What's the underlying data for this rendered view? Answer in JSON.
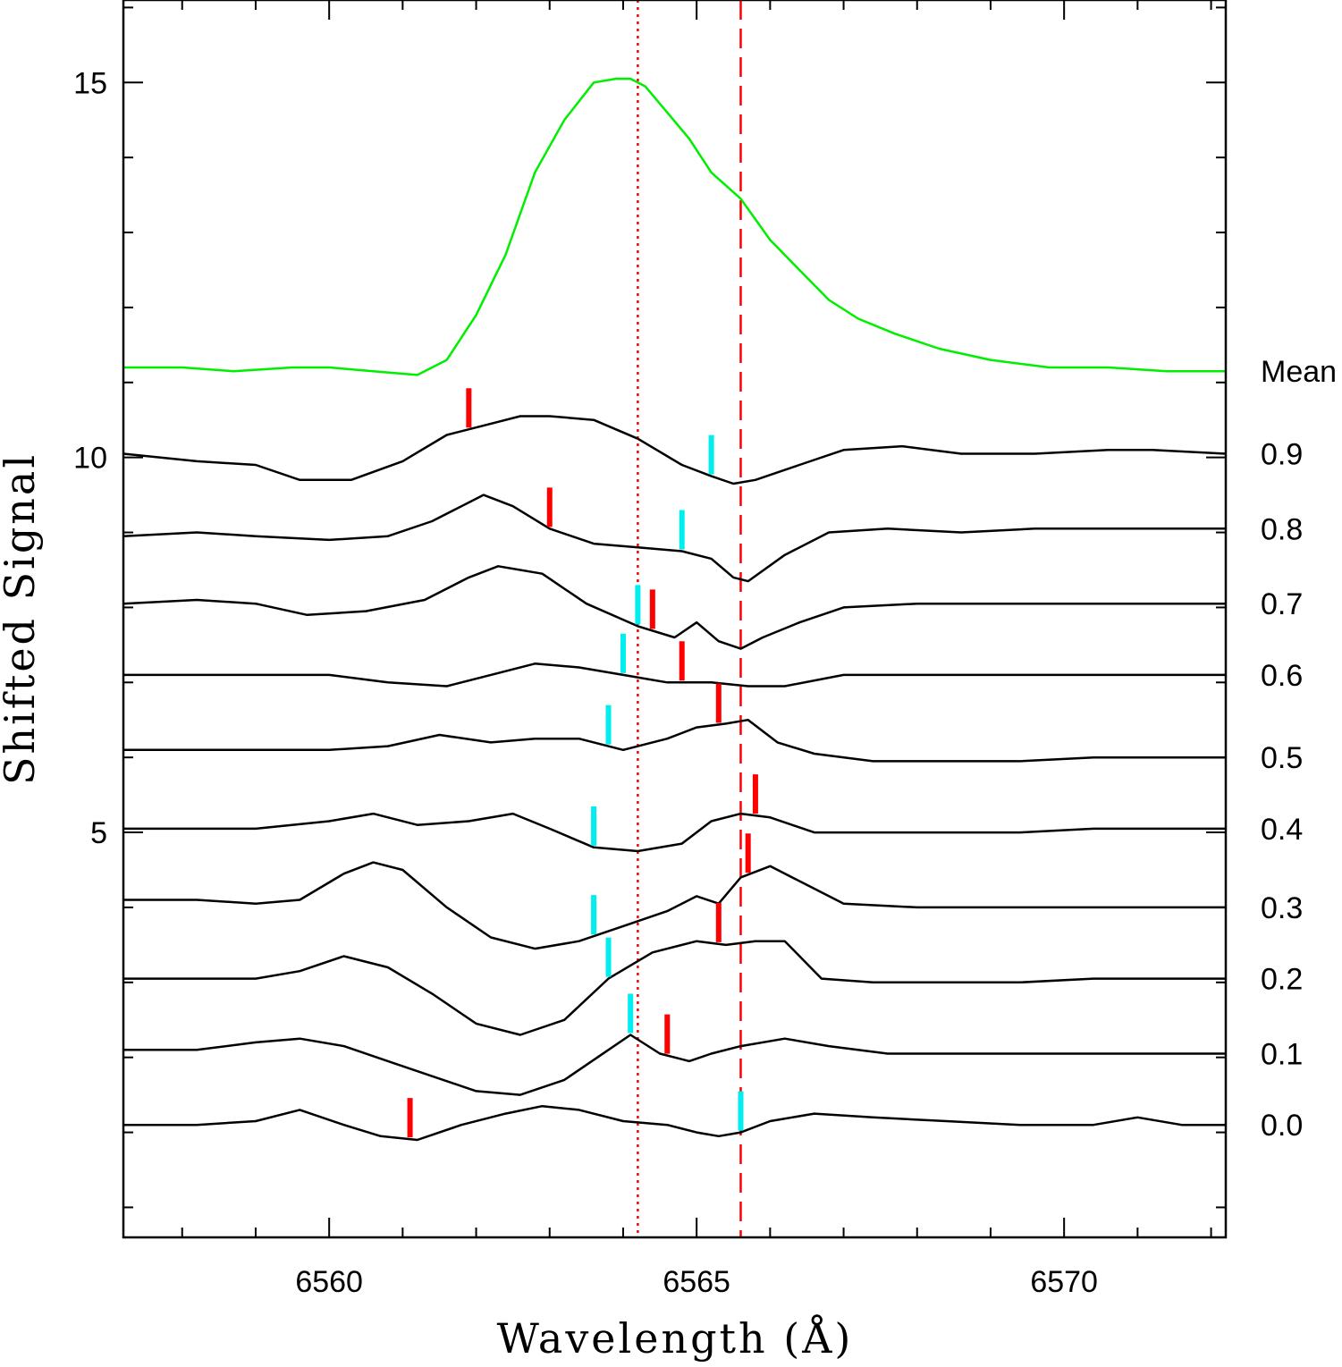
{
  "chart_data": {
    "type": "line",
    "title": "",
    "xlabel": "Wavelength (Å)",
    "ylabel": "Shifted Signal",
    "xlim": [
      6557.2,
      6572.2
    ],
    "ylim": [
      -0.4,
      16.1
    ],
    "x_ticks": [
      6560,
      6565,
      6570
    ],
    "y_ticks": [
      5,
      10,
      15
    ],
    "reference_lines": [
      {
        "x": 6564.2,
        "style": "dotted",
        "color": "#ff0000"
      },
      {
        "x": 6565.6,
        "style": "dashed",
        "color": "#ff0000"
      }
    ],
    "series": [
      {
        "name": "Mean",
        "color": "#00ee00",
        "label": "Mean",
        "x": [
          6557.2,
          6558,
          6558.7,
          6559.5,
          6560,
          6560.6,
          6561.2,
          6561.6,
          6562.0,
          6562.4,
          6562.8,
          6563.2,
          6563.6,
          6563.9,
          6564.1,
          6564.3,
          6564.6,
          6564.9,
          6565.2,
          6565.6,
          6566.0,
          6566.4,
          6566.8,
          6567.2,
          6567.7,
          6568.3,
          6569,
          6569.8,
          6570.6,
          6571.4,
          6572.2
        ],
        "y": [
          11.2,
          11.2,
          11.15,
          11.2,
          11.2,
          11.15,
          11.1,
          11.3,
          11.9,
          12.7,
          13.8,
          14.5,
          15.0,
          15.05,
          15.05,
          14.95,
          14.6,
          14.25,
          13.8,
          13.45,
          12.9,
          12.5,
          12.1,
          11.85,
          11.65,
          11.45,
          11.3,
          11.2,
          11.2,
          11.15,
          11.15
        ]
      },
      {
        "name": "0.9",
        "color": "#000000",
        "label": "0.9",
        "x": [
          6557.2,
          6558.2,
          6559,
          6559.6,
          6560.3,
          6561,
          6561.6,
          6562.2,
          6562.6,
          6563,
          6563.6,
          6564.2,
          6564.8,
          6565.2,
          6565.5,
          6565.8,
          6566.4,
          6567,
          6567.8,
          6568.6,
          6569.6,
          6570.6,
          6571.2,
          6572.2
        ],
        "y": [
          10.05,
          9.95,
          9.9,
          9.7,
          9.7,
          9.95,
          10.3,
          10.45,
          10.55,
          10.55,
          10.5,
          10.25,
          9.9,
          9.75,
          9.65,
          9.7,
          9.9,
          10.1,
          10.15,
          10.05,
          10.05,
          10.1,
          10.1,
          10.05
        ]
      },
      {
        "name": "0.8",
        "color": "#000000",
        "label": "0.8",
        "x": [
          6557.2,
          6558.2,
          6559,
          6560,
          6560.8,
          6561.4,
          6562.1,
          6562.5,
          6563,
          6563.6,
          6564.2,
          6564.8,
          6565.2,
          6565.5,
          6565.7,
          6566.2,
          6566.8,
          6567.6,
          6568.6,
          6569.6,
          6570.6,
          6572.2
        ],
        "y": [
          8.95,
          9.0,
          8.95,
          8.9,
          8.95,
          9.15,
          9.5,
          9.35,
          9.05,
          8.85,
          8.8,
          8.75,
          8.65,
          8.4,
          8.35,
          8.7,
          9.0,
          9.05,
          9.0,
          9.05,
          9.05,
          9.05
        ]
      },
      {
        "name": "0.7",
        "color": "#000000",
        "label": "0.7",
        "x": [
          6557.2,
          6558.2,
          6559,
          6559.7,
          6560.5,
          6561.3,
          6561.9,
          6562.3,
          6562.9,
          6563.5,
          6564.2,
          6564.7,
          6565.0,
          6565.3,
          6565.6,
          6565.9,
          6566.4,
          6567,
          6568,
          6569,
          6570,
          6571,
          6572.2
        ],
        "y": [
          8.05,
          8.1,
          8.05,
          7.9,
          7.95,
          8.1,
          8.4,
          8.55,
          8.45,
          8.05,
          7.75,
          7.6,
          7.8,
          7.55,
          7.45,
          7.6,
          7.8,
          8.0,
          8.05,
          8.05,
          8.05,
          8.05,
          8.05
        ]
      },
      {
        "name": "0.6",
        "color": "#000000",
        "label": "0.6",
        "x": [
          6557.2,
          6558.2,
          6559,
          6560,
          6560.8,
          6561.6,
          6562.2,
          6562.8,
          6563.4,
          6564.0,
          6564.6,
          6565.2,
          6565.7,
          6566.2,
          6567,
          6568,
          6569,
          6570,
          6571,
          6572.2
        ],
        "y": [
          7.1,
          7.1,
          7.1,
          7.1,
          7.0,
          6.95,
          7.1,
          7.25,
          7.2,
          7.1,
          7.0,
          7.0,
          6.95,
          6.95,
          7.1,
          7.1,
          7.1,
          7.1,
          7.1,
          7.1
        ]
      },
      {
        "name": "0.5",
        "color": "#000000",
        "label": "0.5",
        "x": [
          6557.2,
          6558.2,
          6559,
          6560,
          6560.8,
          6561.5,
          6562.2,
          6562.8,
          6563.4,
          6564.0,
          6564.6,
          6565.0,
          6565.4,
          6565.7,
          6566.1,
          6566.6,
          6567.4,
          6568.4,
          6569.4,
          6570.4,
          6571.2,
          6572.2
        ],
        "y": [
          6.1,
          6.1,
          6.1,
          6.1,
          6.15,
          6.3,
          6.2,
          6.25,
          6.25,
          6.1,
          6.25,
          6.4,
          6.45,
          6.5,
          6.2,
          6.05,
          5.95,
          5.95,
          5.95,
          6.0,
          6.0,
          6.0
        ]
      },
      {
        "name": "0.4",
        "color": "#000000",
        "label": "0.4",
        "x": [
          6557.2,
          6558.2,
          6559,
          6560,
          6560.6,
          6561.2,
          6561.9,
          6562.5,
          6563.0,
          6563.6,
          6564.2,
          6564.8,
          6565.2,
          6565.6,
          6566.0,
          6566.6,
          6567.4,
          6568.4,
          6569.4,
          6570.4,
          6571.2,
          6572.2
        ],
        "y": [
          5.05,
          5.05,
          5.05,
          5.15,
          5.25,
          5.1,
          5.15,
          5.25,
          5.05,
          4.8,
          4.75,
          4.85,
          5.15,
          5.25,
          5.2,
          5.0,
          5.0,
          5.0,
          5.0,
          5.05,
          5.05,
          5.05
        ]
      },
      {
        "name": "0.3",
        "color": "#000000",
        "label": "0.3",
        "x": [
          6557.2,
          6558.2,
          6559,
          6559.6,
          6560.2,
          6560.6,
          6561.0,
          6561.6,
          6562.2,
          6562.8,
          6563.4,
          6564.0,
          6564.6,
          6565.0,
          6565.3,
          6565.6,
          6566.0,
          6566.5,
          6567.0,
          6568,
          6569,
          6570,
          6571,
          6572.2
        ],
        "y": [
          4.1,
          4.1,
          4.05,
          4.1,
          4.45,
          4.6,
          4.5,
          4.0,
          3.6,
          3.45,
          3.55,
          3.75,
          3.95,
          4.15,
          4.05,
          4.4,
          4.55,
          4.3,
          4.05,
          4.0,
          4.0,
          4.0,
          4.0,
          4.0
        ]
      },
      {
        "name": "0.2",
        "color": "#000000",
        "label": "0.2",
        "x": [
          6557.2,
          6558.2,
          6559,
          6559.6,
          6560.2,
          6560.8,
          6561.4,
          6562.0,
          6562.6,
          6563.2,
          6563.8,
          6564.4,
          6565.0,
          6565.4,
          6565.8,
          6566.2,
          6566.7,
          6567.4,
          6568.4,
          6569.4,
          6570.4,
          6572.2
        ],
        "y": [
          3.05,
          3.05,
          3.05,
          3.15,
          3.35,
          3.2,
          2.85,
          2.45,
          2.3,
          2.5,
          3.05,
          3.4,
          3.55,
          3.5,
          3.55,
          3.55,
          3.05,
          3.0,
          3.0,
          3.0,
          3.05,
          3.05
        ]
      },
      {
        "name": "0.1",
        "color": "#000000",
        "label": "0.1",
        "x": [
          6557.2,
          6558.2,
          6559,
          6559.6,
          6560.2,
          6560.8,
          6561.4,
          6562.0,
          6562.6,
          6563.2,
          6563.8,
          6564.1,
          6564.5,
          6564.9,
          6565.2,
          6565.6,
          6566.2,
          6566.8,
          6567.6,
          6568.6,
          6569.6,
          6570.6,
          6572.2
        ],
        "y": [
          2.1,
          2.1,
          2.2,
          2.25,
          2.15,
          1.95,
          1.75,
          1.55,
          1.5,
          1.7,
          2.1,
          2.3,
          2.05,
          1.95,
          2.05,
          2.15,
          2.25,
          2.15,
          2.05,
          2.05,
          2.05,
          2.05,
          2.05
        ]
      },
      {
        "name": "0.0",
        "color": "#000000",
        "label": "0.0",
        "x": [
          6557.2,
          6558.2,
          6559,
          6559.6,
          6560.2,
          6560.7,
          6561.2,
          6561.8,
          6562.4,
          6562.9,
          6563.4,
          6564.0,
          6564.6,
          6565.0,
          6565.3,
          6565.6,
          6566.0,
          6566.6,
          6567.4,
          6568.4,
          6569.4,
          6570.4,
          6571.0,
          6571.6,
          6572.2
        ],
        "y": [
          1.1,
          1.1,
          1.15,
          1.3,
          1.1,
          0.95,
          0.9,
          1.1,
          1.25,
          1.35,
          1.3,
          1.15,
          1.1,
          1.0,
          0.95,
          1.0,
          1.15,
          1.25,
          1.2,
          1.15,
          1.1,
          1.1,
          1.2,
          1.1,
          1.1
        ]
      }
    ],
    "markers": [
      {
        "phase": "0.9",
        "red_x": 6561.9,
        "cyan_x": 6565.2
      },
      {
        "phase": "0.8",
        "red_x": 6563.0,
        "cyan_x": 6564.8
      },
      {
        "phase": "0.7",
        "red_x": 6564.4,
        "cyan_x": 6564.2
      },
      {
        "phase": "0.6",
        "red_x": 6564.8,
        "cyan_x": 6564.0
      },
      {
        "phase": "0.5",
        "red_x": 6565.3,
        "cyan_x": 6563.8
      },
      {
        "phase": "0.4",
        "red_x": 6565.8,
        "cyan_x": 6563.6
      },
      {
        "phase": "0.3",
        "red_x": 6565.7,
        "cyan_x": 6563.6
      },
      {
        "phase": "0.2",
        "red_x": 6565.3,
        "cyan_x": 6563.8
      },
      {
        "phase": "0.1",
        "red_x": 6564.6,
        "cyan_x": 6564.1
      },
      {
        "phase": "0.0",
        "red_x": 6561.1,
        "cyan_x": 6565.6
      }
    ],
    "marker_colors": {
      "red": "#ff0000",
      "cyan": "#00eeee"
    }
  }
}
